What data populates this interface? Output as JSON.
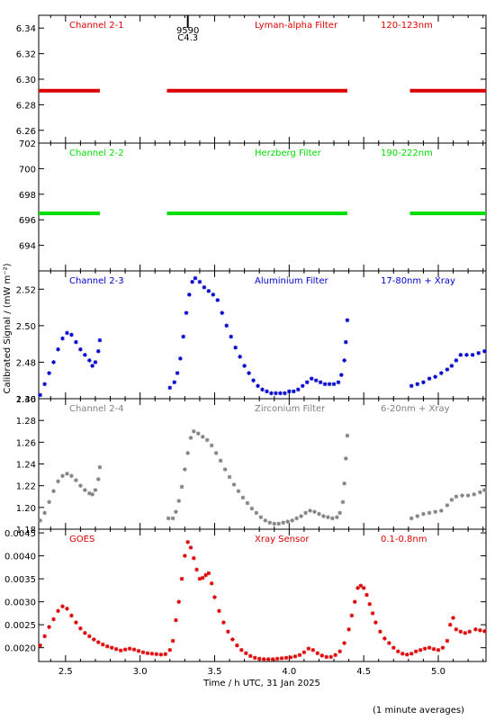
{
  "ylabel_main": "Calibrated Signal / (mW m⁻²)",
  "xlabel": "Time / h UTC, 31 Jan 2025",
  "footnote": "(1 minute averages)",
  "event_marker": {
    "x": 3.32,
    "line1": "9590",
    "line2": "C4.3"
  },
  "x_ticks": [
    "2.5",
    "3.0",
    "3.5",
    "4.0",
    "4.5",
    "5.0"
  ],
  "chart_data": [
    {
      "type": "scatter",
      "panel": "Channel 2-1",
      "labels": [
        "Channel 2-1",
        "Lyman-alpha Filter",
        "120-123nm"
      ],
      "color": "#dd0000",
      "xlim": [
        2.32,
        5.32
      ],
      "ylim": [
        6.25,
        6.35
      ],
      "yticks": [
        6.26,
        6.28,
        6.3,
        6.32,
        6.34
      ],
      "ytick_labels": [
        "6.26",
        "6.28",
        "6.30",
        "6.32",
        "6.34"
      ],
      "segments": [
        {
          "x0": 2.32,
          "x1": 2.73,
          "y": 6.291
        },
        {
          "x0": 3.18,
          "x1": 4.39,
          "y": 6.291
        },
        {
          "x0": 4.81,
          "x1": 5.32,
          "y": 6.291
        }
      ]
    },
    {
      "type": "scatter",
      "panel": "Channel 2-2",
      "labels": [
        "Channel 2-2",
        "Herzberg Filter",
        "190-222nm"
      ],
      "color": "#00dd00",
      "xlim": [
        2.32,
        5.32
      ],
      "ylim": [
        692,
        702
      ],
      "yticks": [
        694,
        696,
        698,
        700,
        702
      ],
      "ytick_labels": [
        "694",
        "696",
        "698",
        "700",
        "702"
      ],
      "segments": [
        {
          "x0": 2.32,
          "x1": 2.73,
          "y": 696.5
        },
        {
          "x0": 3.18,
          "x1": 4.39,
          "y": 696.5
        },
        {
          "x0": 4.81,
          "x1": 5.32,
          "y": 696.5
        }
      ]
    },
    {
      "type": "scatter",
      "panel": "Channel 2-3",
      "labels": [
        "Channel 2-3",
        "Aluminium Filter",
        "17-80nm + Xray"
      ],
      "color": "#0000cc",
      "xlim": [
        2.32,
        5.32
      ],
      "ylim": [
        2.46,
        2.53
      ],
      "yticks": [
        2.46,
        2.48,
        2.5,
        2.52
      ],
      "ytick_labels": [
        "2.46",
        "2.48",
        "2.50",
        "2.52"
      ],
      "points": [
        [
          2.33,
          2.462
        ],
        [
          2.36,
          2.468
        ],
        [
          2.39,
          2.474
        ],
        [
          2.42,
          2.48
        ],
        [
          2.45,
          2.487
        ],
        [
          2.48,
          2.493
        ],
        [
          2.51,
          2.496
        ],
        [
          2.54,
          2.495
        ],
        [
          2.57,
          2.491
        ],
        [
          2.6,
          2.487
        ],
        [
          2.63,
          2.484
        ],
        [
          2.66,
          2.481
        ],
        [
          2.68,
          2.478
        ],
        [
          2.7,
          2.48
        ],
        [
          2.72,
          2.486
        ],
        [
          2.73,
          2.492
        ],
        [
          3.2,
          2.466
        ],
        [
          3.23,
          2.469
        ],
        [
          3.25,
          2.474
        ],
        [
          3.27,
          2.482
        ],
        [
          3.29,
          2.494
        ],
        [
          3.31,
          2.507
        ],
        [
          3.33,
          2.517
        ],
        [
          3.35,
          2.524
        ],
        [
          3.37,
          2.526
        ],
        [
          3.4,
          2.524
        ],
        [
          3.43,
          2.521
        ],
        [
          3.46,
          2.519
        ],
        [
          3.49,
          2.517
        ],
        [
          3.52,
          2.514
        ],
        [
          3.55,
          2.507
        ],
        [
          3.58,
          2.5
        ],
        [
          3.61,
          2.494
        ],
        [
          3.64,
          2.488
        ],
        [
          3.67,
          2.483
        ],
        [
          3.7,
          2.478
        ],
        [
          3.73,
          2.474
        ],
        [
          3.76,
          2.47
        ],
        [
          3.79,
          2.467
        ],
        [
          3.82,
          2.465
        ],
        [
          3.85,
          2.464
        ],
        [
          3.88,
          2.463
        ],
        [
          3.91,
          2.463
        ],
        [
          3.94,
          2.463
        ],
        [
          3.97,
          2.463
        ],
        [
          4.0,
          2.464
        ],
        [
          4.03,
          2.464
        ],
        [
          4.06,
          2.465
        ],
        [
          4.09,
          2.467
        ],
        [
          4.12,
          2.469
        ],
        [
          4.15,
          2.471
        ],
        [
          4.18,
          2.47
        ],
        [
          4.21,
          2.469
        ],
        [
          4.24,
          2.468
        ],
        [
          4.27,
          2.468
        ],
        [
          4.3,
          2.468
        ],
        [
          4.33,
          2.469
        ],
        [
          4.35,
          2.473
        ],
        [
          4.37,
          2.481
        ],
        [
          4.38,
          2.491
        ],
        [
          4.39,
          2.503
        ],
        [
          4.82,
          2.467
        ],
        [
          4.86,
          2.468
        ],
        [
          4.9,
          2.469
        ],
        [
          4.94,
          2.471
        ],
        [
          4.98,
          2.472
        ],
        [
          5.02,
          2.474
        ],
        [
          5.06,
          2.476
        ],
        [
          5.09,
          2.478
        ],
        [
          5.12,
          2.481
        ],
        [
          5.15,
          2.484
        ],
        [
          5.19,
          2.484
        ],
        [
          5.23,
          2.484
        ],
        [
          5.27,
          2.485
        ],
        [
          5.31,
          2.486
        ]
      ]
    },
    {
      "type": "scatter",
      "panel": "Channel 2-4",
      "labels": [
        "Channel 2-4",
        "Zirconium Filter",
        "6-20nm + Xray"
      ],
      "color": "#808080",
      "xlim": [
        2.32,
        5.32
      ],
      "ylim": [
        1.18,
        1.3
      ],
      "yticks": [
        1.18,
        1.2,
        1.22,
        1.24,
        1.26,
        1.28,
        1.3
      ],
      "ytick_labels": [
        "1.18",
        "1.20",
        "1.22",
        "1.24",
        "1.26",
        "1.28",
        "1.30"
      ],
      "points": [
        [
          2.33,
          1.188
        ],
        [
          2.36,
          1.195
        ],
        [
          2.39,
          1.205
        ],
        [
          2.42,
          1.215
        ],
        [
          2.45,
          1.224
        ],
        [
          2.48,
          1.229
        ],
        [
          2.51,
          1.231
        ],
        [
          2.54,
          1.229
        ],
        [
          2.57,
          1.225
        ],
        [
          2.6,
          1.22
        ],
        [
          2.63,
          1.216
        ],
        [
          2.66,
          1.213
        ],
        [
          2.68,
          1.212
        ],
        [
          2.7,
          1.216
        ],
        [
          2.72,
          1.226
        ],
        [
          2.73,
          1.237
        ],
        [
          3.19,
          1.19
        ],
        [
          3.22,
          1.19
        ],
        [
          3.24,
          1.196
        ],
        [
          3.26,
          1.206
        ],
        [
          3.28,
          1.219
        ],
        [
          3.3,
          1.235
        ],
        [
          3.32,
          1.25
        ],
        [
          3.34,
          1.264
        ],
        [
          3.36,
          1.27
        ],
        [
          3.39,
          1.268
        ],
        [
          3.42,
          1.265
        ],
        [
          3.45,
          1.262
        ],
        [
          3.48,
          1.257
        ],
        [
          3.51,
          1.25
        ],
        [
          3.54,
          1.243
        ],
        [
          3.57,
          1.235
        ],
        [
          3.6,
          1.228
        ],
        [
          3.63,
          1.221
        ],
        [
          3.66,
          1.215
        ],
        [
          3.69,
          1.209
        ],
        [
          3.72,
          1.204
        ],
        [
          3.75,
          1.199
        ],
        [
          3.78,
          1.195
        ],
        [
          3.81,
          1.191
        ],
        [
          3.84,
          1.188
        ],
        [
          3.87,
          1.186
        ],
        [
          3.9,
          1.185
        ],
        [
          3.93,
          1.185
        ],
        [
          3.96,
          1.186
        ],
        [
          3.99,
          1.187
        ],
        [
          4.02,
          1.188
        ],
        [
          4.05,
          1.19
        ],
        [
          4.08,
          1.192
        ],
        [
          4.11,
          1.195
        ],
        [
          4.14,
          1.197
        ],
        [
          4.17,
          1.196
        ],
        [
          4.2,
          1.194
        ],
        [
          4.23,
          1.192
        ],
        [
          4.26,
          1.191
        ],
        [
          4.29,
          1.19
        ],
        [
          4.32,
          1.191
        ],
        [
          4.34,
          1.195
        ],
        [
          4.36,
          1.205
        ],
        [
          4.37,
          1.222
        ],
        [
          4.38,
          1.245
        ],
        [
          4.39,
          1.266
        ],
        [
          4.82,
          1.19
        ],
        [
          4.86,
          1.192
        ],
        [
          4.9,
          1.194
        ],
        [
          4.94,
          1.195
        ],
        [
          4.98,
          1.196
        ],
        [
          5.02,
          1.197
        ],
        [
          5.06,
          1.202
        ],
        [
          5.09,
          1.207
        ],
        [
          5.12,
          1.21
        ],
        [
          5.16,
          1.211
        ],
        [
          5.2,
          1.211
        ],
        [
          5.24,
          1.212
        ],
        [
          5.28,
          1.214
        ],
        [
          5.31,
          1.216
        ]
      ]
    },
    {
      "type": "scatter",
      "panel": "GOES",
      "labels": [
        "GOES",
        "Xray Sensor",
        "0.1-0.8nm"
      ],
      "color": "#dd0000",
      "xlim": [
        2.32,
        5.32
      ],
      "ylim": [
        0.0017,
        0.00458
      ],
      "yticks": [
        0.002,
        0.0025,
        0.003,
        0.0035,
        0.004,
        0.0045
      ],
      "ytick_labels": [
        "0.0020",
        "0.0025",
        "0.0030",
        "0.0035",
        "0.0040",
        "0.0045"
      ],
      "points": [
        [
          2.33,
          0.00205
        ],
        [
          2.36,
          0.00225
        ],
        [
          2.39,
          0.00245
        ],
        [
          2.42,
          0.00262
        ],
        [
          2.45,
          0.0028
        ],
        [
          2.48,
          0.0029
        ],
        [
          2.51,
          0.00285
        ],
        [
          2.54,
          0.0027
        ],
        [
          2.57,
          0.00255
        ],
        [
          2.6,
          0.00242
        ],
        [
          2.63,
          0.00232
        ],
        [
          2.66,
          0.00225
        ],
        [
          2.69,
          0.00218
        ],
        [
          2.72,
          0.00212
        ],
        [
          2.75,
          0.00207
        ],
        [
          2.78,
          0.00203
        ],
        [
          2.81,
          0.002
        ],
        [
          2.84,
          0.00197
        ],
        [
          2.87,
          0.00194
        ],
        [
          2.9,
          0.00196
        ],
        [
          2.93,
          0.00198
        ],
        [
          2.96,
          0.00196
        ],
        [
          2.99,
          0.00193
        ],
        [
          3.02,
          0.0019
        ],
        [
          3.05,
          0.00188
        ],
        [
          3.08,
          0.00187
        ],
        [
          3.11,
          0.00186
        ],
        [
          3.14,
          0.00185
        ],
        [
          3.17,
          0.00186
        ],
        [
          3.2,
          0.00195
        ],
        [
          3.22,
          0.00215
        ],
        [
          3.24,
          0.0026
        ],
        [
          3.26,
          0.003
        ],
        [
          3.28,
          0.0035
        ],
        [
          3.3,
          0.004
        ],
        [
          3.32,
          0.0043
        ],
        [
          3.34,
          0.00418
        ],
        [
          3.36,
          0.00395
        ],
        [
          3.38,
          0.0037
        ],
        [
          3.4,
          0.0035
        ],
        [
          3.42,
          0.00352
        ],
        [
          3.44,
          0.00358
        ],
        [
          3.46,
          0.00362
        ],
        [
          3.48,
          0.0034
        ],
        [
          3.5,
          0.0031
        ],
        [
          3.53,
          0.0028
        ],
        [
          3.56,
          0.00255
        ],
        [
          3.59,
          0.00235
        ],
        [
          3.62,
          0.00218
        ],
        [
          3.65,
          0.00205
        ],
        [
          3.68,
          0.00195
        ],
        [
          3.71,
          0.00188
        ],
        [
          3.74,
          0.00182
        ],
        [
          3.77,
          0.00178
        ],
        [
          3.8,
          0.00176
        ],
        [
          3.83,
          0.00175
        ],
        [
          3.86,
          0.00175
        ],
        [
          3.89,
          0.00175
        ],
        [
          3.92,
          0.00176
        ],
        [
          3.95,
          0.00177
        ],
        [
          3.98,
          0.00178
        ],
        [
          4.01,
          0.00179
        ],
        [
          4.04,
          0.00181
        ],
        [
          4.07,
          0.00184
        ],
        [
          4.1,
          0.0019
        ],
        [
          4.13,
          0.00198
        ],
        [
          4.16,
          0.00195
        ],
        [
          4.19,
          0.00188
        ],
        [
          4.22,
          0.00183
        ],
        [
          4.25,
          0.0018
        ],
        [
          4.28,
          0.0018
        ],
        [
          4.31,
          0.00184
        ],
        [
          4.34,
          0.00192
        ],
        [
          4.37,
          0.0021
        ],
        [
          4.4,
          0.0024
        ],
        [
          4.42,
          0.0027
        ],
        [
          4.44,
          0.003
        ],
        [
          4.46,
          0.0033
        ],
        [
          4.48,
          0.00335
        ],
        [
          4.5,
          0.0033
        ],
        [
          4.52,
          0.00315
        ],
        [
          4.54,
          0.00295
        ],
        [
          4.56,
          0.00275
        ],
        [
          4.58,
          0.00255
        ],
        [
          4.61,
          0.00235
        ],
        [
          4.64,
          0.0022
        ],
        [
          4.67,
          0.0021
        ],
        [
          4.7,
          0.002
        ],
        [
          4.73,
          0.00192
        ],
        [
          4.76,
          0.00187
        ],
        [
          4.79,
          0.00185
        ],
        [
          4.82,
          0.00187
        ],
        [
          4.85,
          0.00192
        ],
        [
          4.88,
          0.00195
        ],
        [
          4.91,
          0.00198
        ],
        [
          4.94,
          0.002
        ],
        [
          4.97,
          0.00197
        ],
        [
          5.0,
          0.00195
        ],
        [
          5.03,
          0.002
        ],
        [
          5.06,
          0.00215
        ],
        [
          5.08,
          0.0025
        ],
        [
          5.1,
          0.00265
        ],
        [
          5.12,
          0.0024
        ],
        [
          5.15,
          0.00235
        ],
        [
          5.18,
          0.00232
        ],
        [
          5.21,
          0.00235
        ],
        [
          5.25,
          0.0024
        ],
        [
          5.28,
          0.00238
        ],
        [
          5.31,
          0.00236
        ]
      ]
    }
  ]
}
